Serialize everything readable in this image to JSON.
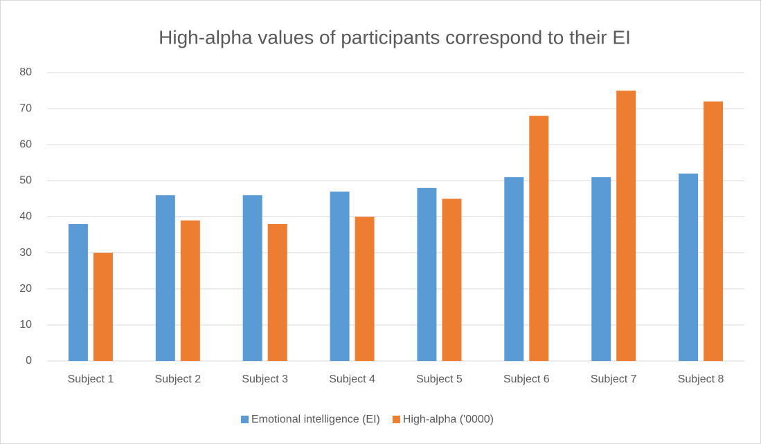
{
  "chart_data": {
    "type": "bar",
    "title": "High-alpha values of participants correspond to their EI",
    "categories": [
      "Subject 1",
      "Subject 2",
      "Subject 3",
      "Subject 4",
      "Subject 5",
      "Subject 6",
      "Subject 7",
      "Subject 8"
    ],
    "series": [
      {
        "name": "Emotional intelligence (EI)",
        "color": "#5b9bd5",
        "values": [
          38,
          46,
          46,
          47,
          48,
          51,
          51,
          52
        ]
      },
      {
        "name": "High-alpha ('0000)",
        "color": "#ed7d31",
        "values": [
          30,
          39,
          38,
          40,
          45,
          68,
          75,
          72
        ]
      }
    ],
    "ylim": [
      0,
      80
    ],
    "yticks": [
      0,
      10,
      20,
      30,
      40,
      50,
      60,
      70,
      80
    ],
    "grid": true,
    "legend": "bottom"
  }
}
